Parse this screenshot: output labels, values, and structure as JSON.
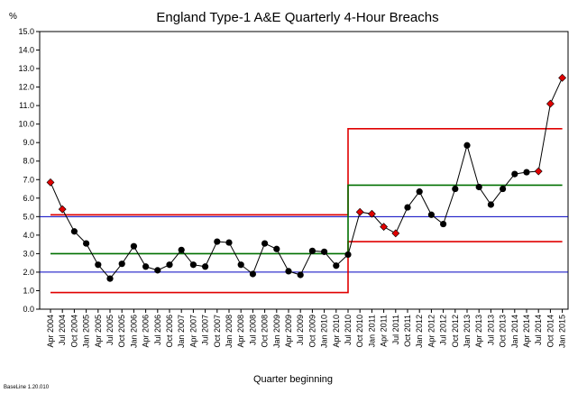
{
  "chart_data": {
    "type": "line",
    "title": "England Type-1 A&E Quarterly 4-Hour Breachs",
    "ylabel": "%",
    "xlabel": "Quarter beginning",
    "footer": "BaseLine 1.20.010",
    "ylim": [
      0,
      15
    ],
    "yticks": [
      "0.0",
      "1.0",
      "2.0",
      "3.0",
      "4.0",
      "5.0",
      "6.0",
      "7.0",
      "8.0",
      "9.0",
      "10.0",
      "11.0",
      "12.0",
      "13.0",
      "14.0",
      "15.0"
    ],
    "categories": [
      "Apr 2004",
      "Jul 2004",
      "Oct 2004",
      "Jan 2005",
      "Apr 2005",
      "Jul 2005",
      "Oct 2005",
      "Jan 2006",
      "Apr 2006",
      "Jul 2006",
      "Oct 2006",
      "Jan 2007",
      "Apr 2007",
      "Jul 2007",
      "Oct 2007",
      "Jan 2008",
      "Apr 2008",
      "Jul 2008",
      "Oct 2008",
      "Jan 2009",
      "Apr 2009",
      "Jul 2009",
      "Oct 2009",
      "Jan 2010",
      "Apr 2010",
      "Jul 2010",
      "Oct 2010",
      "Jan 2011",
      "Apr 2011",
      "Jul 2011",
      "Oct 2011",
      "Jan 2012",
      "Apr 2012",
      "Jul 2012",
      "Oct 2012",
      "Jan 2013",
      "Apr 2013",
      "Jul 2013",
      "Oct 2013",
      "Jan 2014",
      "Apr 2014",
      "Jul 2014",
      "Oct 2014",
      "Jan 2015"
    ],
    "series": [
      {
        "values": [
          6.85,
          5.4,
          4.2,
          3.55,
          2.4,
          1.65,
          2.45,
          3.4,
          2.3,
          2.1,
          2.4,
          3.2,
          2.4,
          2.3,
          3.65,
          3.6,
          2.4,
          1.9,
          3.55,
          3.25,
          2.05,
          1.85,
          3.15,
          3.1,
          2.35,
          2.95,
          5.25,
          5.15,
          4.45,
          4.1,
          5.5,
          6.35,
          5.1,
          4.6,
          6.5,
          8.85,
          6.6,
          5.65,
          6.5,
          7.3,
          7.4,
          7.45,
          11.1,
          12.5
        ],
        "special_points": [
          0,
          1,
          26,
          27,
          28,
          29,
          41,
          42,
          43
        ],
        "color": "#000000",
        "special_color": "#e00000"
      }
    ],
    "phases": [
      {
        "start": 0,
        "end": 25,
        "mean": 3.0,
        "ucl": 5.1,
        "lcl": 0.9
      },
      {
        "start": 25,
        "end": 43,
        "mean": 6.7,
        "ucl": 9.75,
        "lcl": 3.65
      }
    ],
    "reference_lines": [
      5.0,
      2.0
    ],
    "colors": {
      "mean": "#007000",
      "limits": "#e00000",
      "reference": "#0000c0"
    }
  }
}
